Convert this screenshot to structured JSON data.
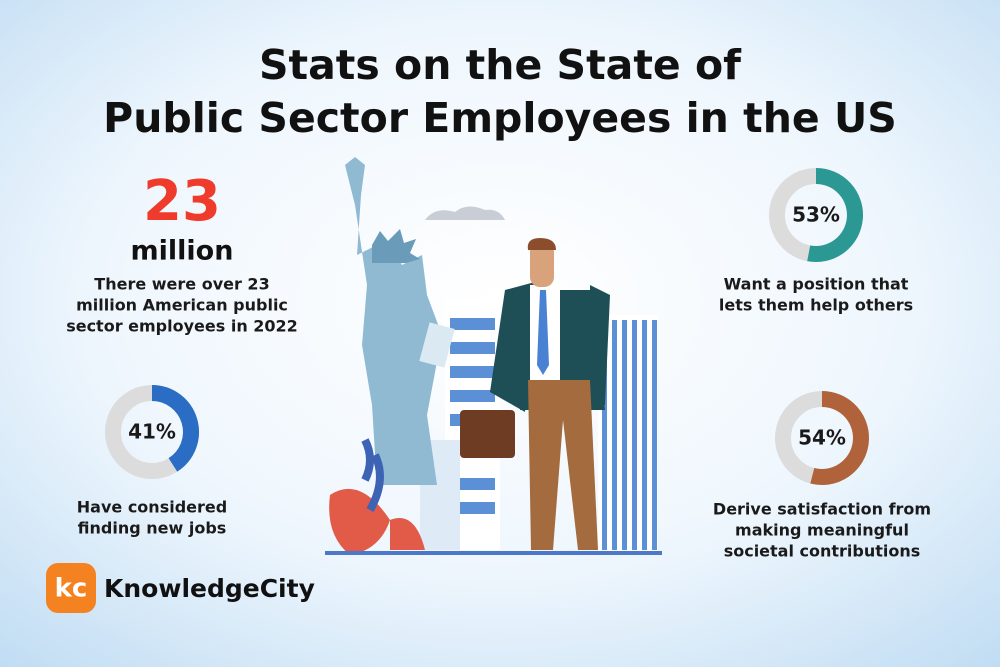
{
  "title_lines": [
    "Stats on the State of",
    "Public Sector Employees in the US"
  ],
  "headline": {
    "number": 23,
    "unit": "million",
    "caption_lines": [
      "There were over 23",
      "million American public",
      "sector employees in 2022"
    ]
  },
  "stats": [
    {
      "value": 41,
      "value_label": "41%",
      "color": "#2b6cc4",
      "caption_lines": [
        "Have considered",
        "finding new jobs"
      ]
    },
    {
      "value": 53,
      "value_label": "53%",
      "color": "#2b9893",
      "caption_lines": [
        "Want a position that",
        "lets them help others"
      ]
    },
    {
      "value": 54,
      "value_label": "54%",
      "color": "#b0623a",
      "caption_lines": [
        "Derive satisfaction from",
        "making meaningful",
        "societal contributions"
      ]
    }
  ],
  "logo": {
    "mark": "kc",
    "name": "KnowledgeCity"
  }
}
